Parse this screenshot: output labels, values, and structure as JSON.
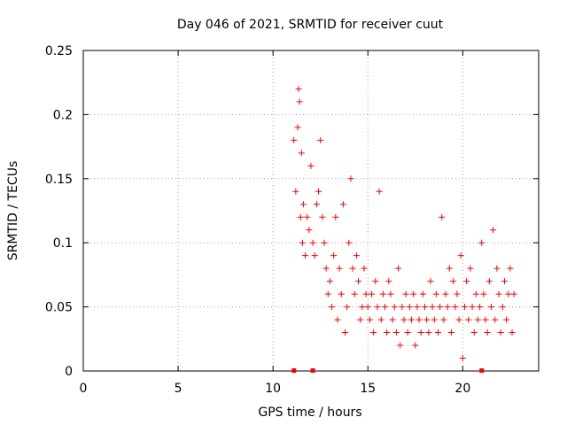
{
  "chart_data": {
    "type": "scatter",
    "title": "Day 046 of 2021, SRMTID for receiver cuut",
    "xlabel": "GPS time / hours",
    "ylabel": "SRMTID / TECUs",
    "xlim": [
      0,
      24
    ],
    "ylim": [
      0,
      0.25
    ],
    "x_ticks": [
      0,
      5,
      10,
      15,
      20
    ],
    "y_ticks": [
      0,
      0.05,
      0.1,
      0.15,
      0.2,
      0.25
    ],
    "x_tick_labels": [
      "0",
      "5",
      "10",
      "15",
      "20"
    ],
    "y_tick_labels": [
      "0",
      "0.05",
      "0.1",
      "0.15",
      "0.2",
      "0.25"
    ],
    "grid": true,
    "marker": "plus",
    "color": "#ff0000",
    "baseline_markers_x": [
      11.1,
      12.1,
      21.0
    ],
    "series": [
      {
        "x": [
          11.1,
          11.2,
          11.3,
          11.35,
          11.4,
          11.45,
          11.5,
          11.55,
          11.6,
          11.7,
          11.8,
          11.9,
          12.0,
          12.1,
          12.2,
          12.3,
          12.4,
          12.5,
          12.6,
          12.7,
          12.8,
          12.9,
          13.0,
          13.1,
          13.2,
          13.3,
          13.4,
          13.5,
          13.6,
          13.7,
          13.8,
          13.9,
          14.0,
          14.1,
          14.2,
          14.3,
          14.4,
          14.5,
          14.6,
          14.7,
          14.8,
          14.9,
          15.0,
          15.1,
          15.2,
          15.3,
          15.4,
          15.5,
          15.6,
          15.7,
          15.8,
          15.9,
          16.0,
          16.1,
          16.2,
          16.3,
          16.4,
          16.5,
          16.6,
          16.7,
          16.8,
          16.9,
          17.0,
          17.1,
          17.2,
          17.3,
          17.4,
          17.5,
          17.6,
          17.7,
          17.8,
          17.9,
          18.0,
          18.1,
          18.2,
          18.3,
          18.4,
          18.5,
          18.6,
          18.7,
          18.8,
          18.9,
          19.0,
          19.1,
          19.2,
          19.3,
          19.4,
          19.5,
          19.6,
          19.7,
          19.8,
          19.9,
          20.0,
          20.1,
          20.2,
          20.3,
          20.4,
          20.5,
          20.6,
          20.7,
          20.8,
          20.9,
          21.0,
          21.1,
          21.2,
          21.3,
          21.4,
          21.5,
          21.6,
          21.7,
          21.8,
          21.9,
          22.0,
          22.1,
          22.2,
          22.3,
          22.4,
          22.5,
          22.6,
          22.7
        ],
        "y": [
          0.18,
          0.14,
          0.19,
          0.22,
          0.21,
          0.12,
          0.17,
          0.1,
          0.13,
          0.09,
          0.12,
          0.11,
          0.16,
          0.1,
          0.09,
          0.13,
          0.14,
          0.18,
          0.12,
          0.1,
          0.08,
          0.06,
          0.07,
          0.05,
          0.09,
          0.12,
          0.04,
          0.08,
          0.06,
          0.13,
          0.03,
          0.05,
          0.1,
          0.15,
          0.08,
          0.06,
          0.09,
          0.07,
          0.04,
          0.05,
          0.08,
          0.06,
          0.05,
          0.04,
          0.06,
          0.03,
          0.07,
          0.05,
          0.14,
          0.04,
          0.06,
          0.05,
          0.03,
          0.07,
          0.06,
          0.04,
          0.05,
          0.03,
          0.08,
          0.02,
          0.05,
          0.04,
          0.06,
          0.03,
          0.05,
          0.04,
          0.06,
          0.02,
          0.05,
          0.04,
          0.03,
          0.06,
          0.05,
          0.04,
          0.03,
          0.07,
          0.05,
          0.04,
          0.06,
          0.03,
          0.05,
          0.12,
          0.04,
          0.06,
          0.05,
          0.08,
          0.03,
          0.07,
          0.05,
          0.06,
          0.04,
          0.09,
          0.01,
          0.05,
          0.07,
          0.04,
          0.08,
          0.05,
          0.03,
          0.06,
          0.04,
          0.05,
          0.1,
          0.06,
          0.04,
          0.03,
          0.07,
          0.05,
          0.11,
          0.04,
          0.08,
          0.06,
          0.03,
          0.05,
          0.07,
          0.04,
          0.06,
          0.08,
          0.03,
          0.06
        ]
      }
    ]
  }
}
